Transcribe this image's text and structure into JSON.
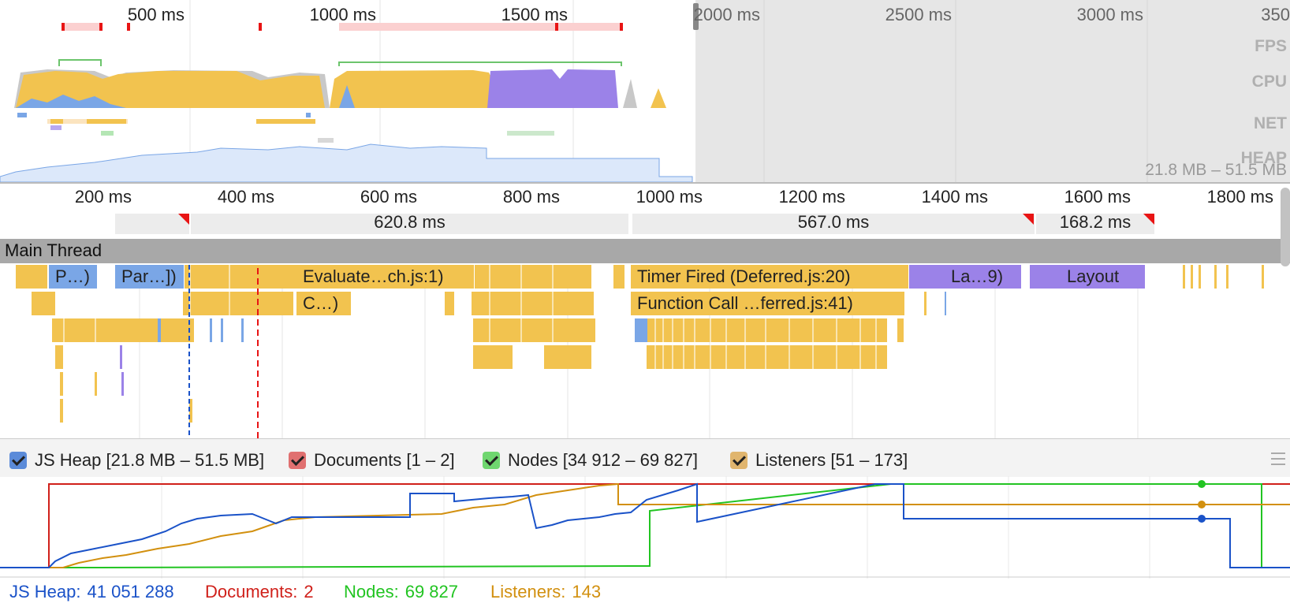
{
  "overview": {
    "ticks": [
      "500 ms",
      "1000 ms",
      "1500 ms",
      "2000 ms",
      "2500 ms",
      "3000 ms",
      "350"
    ],
    "lanes": [
      "FPS",
      "CPU",
      "NET",
      "HEAP"
    ],
    "heap_range": "21.8 MB – 51.5 MB"
  },
  "timeline": {
    "ticks": [
      "200 ms",
      "400 ms",
      "600 ms",
      "800 ms",
      "1000 ms",
      "1200 ms",
      "1400 ms",
      "1600 ms",
      "1800 ms"
    ],
    "frames": [
      "620.8 ms",
      "567.0 ms",
      "168.2 ms"
    ]
  },
  "main_thread": {
    "title": "Main Thread",
    "blocks": [
      {
        "label": "P…)",
        "color": "#7aa6e6"
      },
      {
        "label": "Par…])",
        "color": "#7aa6e6"
      },
      {
        "label": "Evaluate…ch.js:1)",
        "color": "#f2c34f"
      },
      {
        "label": "Timer Fired (Deferred.js:20)",
        "color": "#f2c34f"
      },
      {
        "label": "La…9)",
        "color": "#9b82e8"
      },
      {
        "label": "Layout",
        "color": "#9b82e8"
      },
      {
        "label": "C…)",
        "color": "#f2c34f"
      },
      {
        "label": "Function Call …ferred.js:41)",
        "color": "#f2c34f"
      }
    ]
  },
  "counters_legend": [
    {
      "label": "JS Heap",
      "range": "[21.8 MB – 51.5 MB]",
      "color": "#5b8bd9",
      "checked": true
    },
    {
      "label": "Documents",
      "range": "[1 – 2]",
      "color": "#e07070",
      "checked": true
    },
    {
      "label": "Nodes",
      "range": "[34 912 – 69 827]",
      "color": "#6fd66f",
      "checked": true
    },
    {
      "label": "Listeners",
      "range": "[51 – 173]",
      "color": "#e0b56e",
      "checked": true
    }
  ],
  "counter_values": [
    {
      "label": "JS Heap:",
      "value": "41 051 288",
      "color": "#1a52c8"
    },
    {
      "label": "Documents:",
      "value": "2",
      "color": "#d0201a"
    },
    {
      "label": "Nodes:",
      "value": "69 827",
      "color": "#22c422"
    },
    {
      "label": "Listeners:",
      "value": "143",
      "color": "#d2900f"
    }
  ],
  "colors": {
    "scripting": "#f2c34f",
    "loading": "#7aa6e6",
    "rendering": "#9b82e8",
    "idle": "#c8c8c8",
    "heap_line": "#1a52c8",
    "documents_line": "#d0201a",
    "nodes_line": "#22c422",
    "listeners_line": "#d2900f"
  },
  "icons": [
    "checkbox-icon",
    "menu-icon"
  ]
}
